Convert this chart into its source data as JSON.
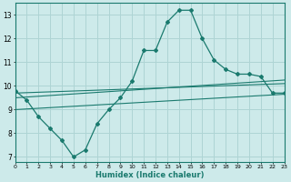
{
  "title": "",
  "xlabel": "Humidex (Indice chaleur)",
  "xlim": [
    0,
    23
  ],
  "ylim": [
    6.8,
    13.5
  ],
  "yticks": [
    7,
    8,
    9,
    10,
    11,
    12,
    13
  ],
  "xticks": [
    0,
    1,
    2,
    3,
    4,
    5,
    6,
    7,
    8,
    9,
    10,
    11,
    12,
    13,
    14,
    15,
    16,
    17,
    18,
    19,
    20,
    21,
    22,
    23
  ],
  "background_color": "#cdeaea",
  "grid_color": "#aed4d4",
  "line_color": "#1a7a6e",
  "main_x": [
    0,
    1,
    2,
    3,
    4,
    5,
    6,
    7,
    8,
    9,
    10,
    11,
    12,
    13,
    14,
    15,
    16,
    17,
    18,
    19,
    20,
    21,
    22,
    23
  ],
  "main_y": [
    9.8,
    9.4,
    8.7,
    8.2,
    7.7,
    7.0,
    7.3,
    8.4,
    9.0,
    9.5,
    10.2,
    11.5,
    11.5,
    12.7,
    13.2,
    13.2,
    12.0,
    11.1,
    10.7,
    10.5,
    10.5,
    10.4,
    9.7,
    9.7
  ],
  "line1_y": [
    9.7,
    10.1
  ],
  "line2_y": [
    9.5,
    10.25
  ],
  "line3_y": [
    9.0,
    9.65
  ]
}
